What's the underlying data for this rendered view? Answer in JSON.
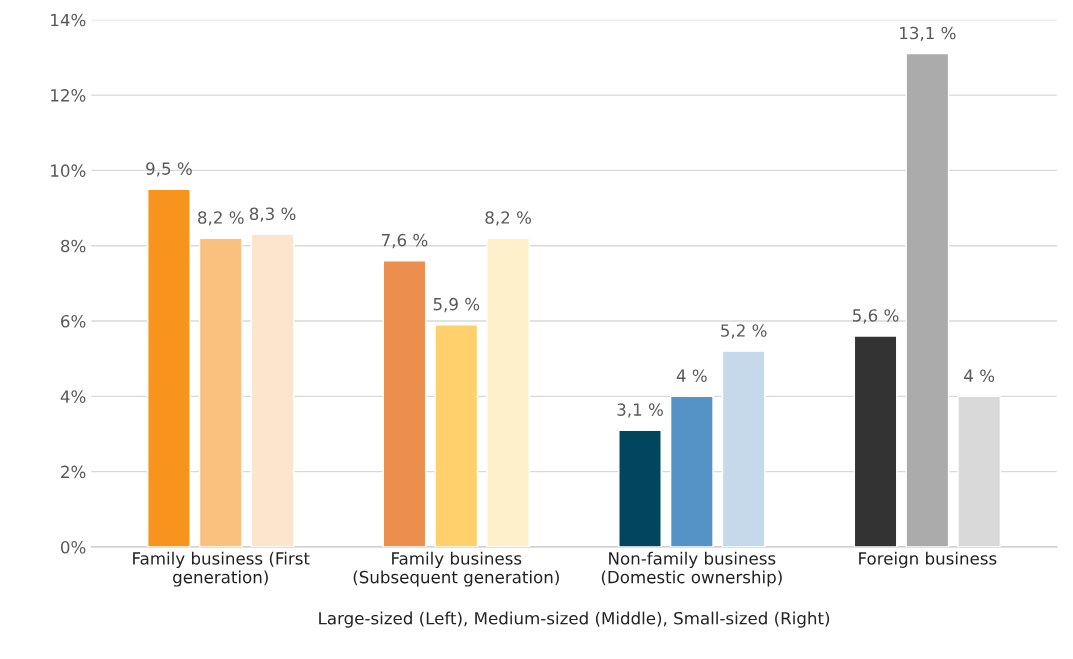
{
  "chart_data": {
    "type": "bar",
    "xlabel": "Large-sized (Left), Medium-sized (Middle), Small-sized (Right)",
    "categories": [
      "Family business (First\ngeneration)",
      "Family business\n(Subsequent generation)",
      "Non-family business\n(Domestic ownership)",
      "Foreign business"
    ],
    "series": [
      {
        "colors": [
          "#f7941d",
          "#ec8f4e",
          "#02455f",
          "#333333"
        ],
        "values": [
          9.5,
          7.6,
          3.1,
          5.6
        ],
        "value_labels": [
          "9,5 %",
          "7,6 %",
          "3,1 %",
          "5,6 %"
        ]
      },
      {
        "colors": [
          "#f9c07e",
          "#ffd06b",
          "#5592c5",
          "#ababab"
        ],
        "values": [
          8.2,
          5.9,
          4,
          13.1
        ],
        "value_labels": [
          "8,2 %",
          "5,9 %",
          "4 %",
          "13,1 %"
        ]
      },
      {
        "colors": [
          "#fbe5cd",
          "#fff0cc",
          "#c5d9ea",
          "#d9d9d9"
        ],
        "values": [
          8.3,
          8.2,
          5.2,
          4
        ],
        "value_labels": [
          "8,3 %",
          "8,2 %",
          "5,2 %",
          "4 %"
        ]
      }
    ],
    "ylim": [
      0,
      14
    ],
    "yticks": [
      {
        "value": 0,
        "label": "0%"
      },
      {
        "value": 2,
        "label": "2%"
      },
      {
        "value": 4,
        "label": "4%"
      },
      {
        "value": 6,
        "label": "6%"
      },
      {
        "value": 8,
        "label": "8%"
      },
      {
        "value": 10,
        "label": "10%"
      },
      {
        "value": 12,
        "label": "12%"
      },
      {
        "value": 14,
        "label": "14%"
      }
    ],
    "grid": "y",
    "legend": false
  }
}
